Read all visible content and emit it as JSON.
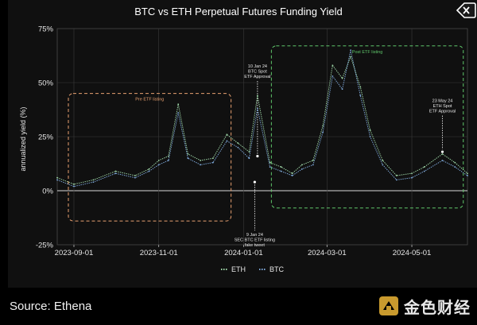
{
  "chart_data": {
    "type": "line",
    "title": "BTC vs ETH Perpetual Futures Funding Yield",
    "ylabel": "annualized yield (%)",
    "xlabel": "",
    "yticks": [
      "75%",
      "50%",
      "25%",
      "0%",
      "-25%"
    ],
    "ytick_values": [
      75,
      50,
      25,
      0,
      -25
    ],
    "ylim": [
      -25,
      75
    ],
    "xlim": [
      "2023-08-20",
      "2024-06-10"
    ],
    "xticks": [
      "2023-09-01",
      "2023-11-01",
      "2024-01-01",
      "2024-03-01",
      "2024-05-01"
    ],
    "grid": true,
    "legend_position": "bottom-center",
    "series": [
      {
        "name": "ETH",
        "color": "#9ed6a7",
        "x": [
          "2023-08-20",
          "2023-09-01",
          "2023-09-15",
          "2023-10-01",
          "2023-10-15",
          "2023-10-25",
          "2023-11-01",
          "2023-11-08",
          "2023-11-15",
          "2023-11-22",
          "2023-12-01",
          "2023-12-10",
          "2023-12-20",
          "2023-12-28",
          "2024-01-05",
          "2024-01-11",
          "2024-01-20",
          "2024-01-28",
          "2024-02-05",
          "2024-02-12",
          "2024-02-20",
          "2024-02-27",
          "2024-03-05",
          "2024-03-12",
          "2024-03-18",
          "2024-03-25",
          "2024-04-01",
          "2024-04-10",
          "2024-04-20",
          "2024-05-01",
          "2024-05-10",
          "2024-05-23",
          "2024-06-01",
          "2024-06-10"
        ],
        "y": [
          6,
          3,
          5,
          9,
          7,
          10,
          14,
          16,
          40,
          17,
          14,
          15,
          26,
          22,
          18,
          44,
          13,
          11,
          8,
          12,
          14,
          30,
          58,
          52,
          62,
          48,
          28,
          14,
          7,
          8,
          11,
          17,
          13,
          8
        ]
      },
      {
        "name": "BTC",
        "color": "#7ea8d9",
        "x": [
          "2023-08-20",
          "2023-09-01",
          "2023-09-15",
          "2023-10-01",
          "2023-10-15",
          "2023-10-25",
          "2023-11-01",
          "2023-11-08",
          "2023-11-15",
          "2023-11-22",
          "2023-12-01",
          "2023-12-10",
          "2023-12-20",
          "2023-12-28",
          "2024-01-05",
          "2024-01-11",
          "2024-01-20",
          "2024-01-28",
          "2024-02-05",
          "2024-02-12",
          "2024-02-20",
          "2024-02-27",
          "2024-03-05",
          "2024-03-12",
          "2024-03-18",
          "2024-03-25",
          "2024-04-01",
          "2024-04-10",
          "2024-04-20",
          "2024-05-01",
          "2024-05-10",
          "2024-05-23",
          "2024-06-01",
          "2024-06-10"
        ],
        "y": [
          5,
          2,
          4,
          8,
          6,
          9,
          12,
          14,
          36,
          15,
          12,
          13,
          23,
          20,
          15,
          38,
          11,
          9,
          7,
          10,
          12,
          27,
          53,
          47,
          65,
          44,
          25,
          12,
          5,
          6,
          9,
          14,
          11,
          7
        ]
      }
    ],
    "annotations": [
      {
        "text_lines": [
          "Pre ETF listing"
        ],
        "color": "#e8a070",
        "x_start": "2023-08-28",
        "x_end": "2023-12-23",
        "y_top": 45,
        "y_bottom": -14
      },
      {
        "text_lines": [
          "Post ETF listing"
        ],
        "color": "#5fc66a",
        "x_start": "2024-01-21",
        "x_end": "2024-06-07",
        "y_top": 67,
        "y_bottom": -8
      },
      {
        "text_lines": [
          "10 Jan 24",
          "BTC Spot",
          "ETF Approval"
        ],
        "x": "2024-01-11",
        "y": 57,
        "point_y": 16
      },
      {
        "text_lines": [
          "9 Jan 24",
          "SEC BTC ETF listing",
          "fake tweet"
        ],
        "x": "2024-01-09",
        "y": -21,
        "point_y": 4
      },
      {
        "text_lines": [
          "23 May 24",
          "ETH Spot",
          "ETF Approval"
        ],
        "x": "2024-05-23",
        "y": 41,
        "point_y": 18
      }
    ]
  },
  "source": "Source: Ethena",
  "brand": {
    "name": "金色财经"
  }
}
